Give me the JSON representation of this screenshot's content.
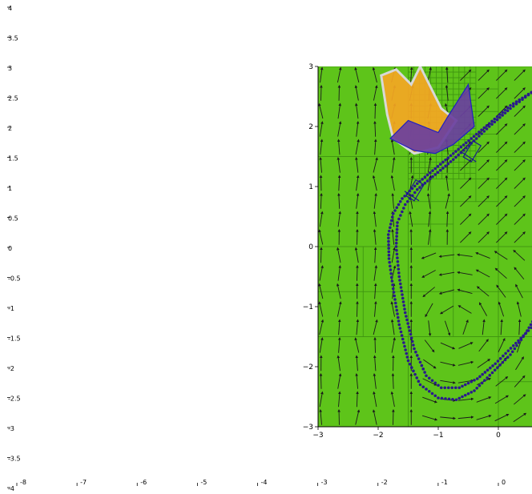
{
  "chart_data": [
    {
      "type": "scatter",
      "role": "outer-axes",
      "xlim": [
        -8,
        0
      ],
      "ylim": [
        -4,
        4
      ],
      "x_ticks": [
        "-8",
        "-7",
        "-6",
        "-5",
        "-4",
        "-3",
        "-2",
        "-1",
        "0"
      ],
      "y_ticks": [
        "4",
        "3.5",
        "3",
        "2.5",
        "2",
        "1.5",
        "1",
        "0.5",
        "0",
        "-0.5",
        "-1",
        "-1.5",
        "-2",
        "-2.5",
        "-3",
        "-3.5",
        "-4"
      ],
      "grid": false
    },
    {
      "type": "scatter",
      "role": "inner-map-axes",
      "xlim": [
        -3,
        0.6
      ],
      "ylim": [
        -3,
        3
      ],
      "x_ticks": [
        "−3",
        "−2",
        "−1",
        "0"
      ],
      "y_ticks": [
        "3",
        "2",
        "1",
        "0",
        "−1",
        "−2",
        "−3"
      ],
      "background_color": "#5ec41a",
      "cell_border_color": "#3f9412",
      "obstacles": [
        {
          "name": "orange-region",
          "color": "#f5a623",
          "outline": "#d8d8d8",
          "polygon": [
            [
              -1.95,
              2.85
            ],
            [
              -1.7,
              2.95
            ],
            [
              -1.45,
              2.7
            ],
            [
              -1.3,
              3.0
            ],
            [
              -1.1,
              2.6
            ],
            [
              -0.95,
              2.3
            ],
            [
              -0.7,
              2.1
            ],
            [
              -1.0,
              1.65
            ],
            [
              -1.4,
              1.55
            ],
            [
              -1.75,
              1.8
            ],
            [
              -1.85,
              2.2
            ]
          ]
        },
        {
          "name": "purple-region",
          "color": "#6a3fa0",
          "outline": "#2020c0",
          "polygon": [
            [
              -1.8,
              1.8
            ],
            [
              -1.5,
              2.1
            ],
            [
              -1.0,
              1.9
            ],
            [
              -0.85,
              2.15
            ],
            [
              -0.5,
              2.7
            ],
            [
              -0.4,
              2.0
            ],
            [
              -0.75,
              1.7
            ],
            [
              -1.05,
              1.55
            ],
            [
              -1.4,
              1.6
            ]
          ]
        }
      ],
      "trajectories": [
        {
          "color": "#2a1a8c",
          "points": [
            [
              0.6,
              2.6
            ],
            [
              0.2,
              2.35
            ],
            [
              -0.15,
              2.05
            ],
            [
              -0.45,
              1.8
            ],
            [
              -0.75,
              1.55
            ],
            [
              -1.05,
              1.3
            ],
            [
              -1.35,
              1.05
            ],
            [
              -1.6,
              0.8
            ],
            [
              -1.75,
              0.55
            ],
            [
              -1.83,
              0.2
            ],
            [
              -1.82,
              -0.2
            ],
            [
              -1.75,
              -0.7
            ],
            [
              -1.65,
              -1.3
            ],
            [
              -1.5,
              -1.9
            ],
            [
              -1.3,
              -2.3
            ],
            [
              -1.0,
              -2.52
            ],
            [
              -0.7,
              -2.55
            ],
            [
              -0.4,
              -2.4
            ],
            [
              -0.1,
              -2.1
            ],
            [
              0.2,
              -1.8
            ],
            [
              0.45,
              -1.45
            ],
            [
              0.6,
              -1.2
            ]
          ]
        },
        {
          "color": "#2a1a8c",
          "points": [
            [
              0.6,
              2.6
            ],
            [
              0.2,
              2.3
            ],
            [
              -0.15,
              2.0
            ],
            [
              -0.45,
              1.72
            ],
            [
              -0.75,
              1.45
            ],
            [
              -1.05,
              1.2
            ],
            [
              -1.35,
              0.95
            ],
            [
              -1.55,
              0.7
            ],
            [
              -1.68,
              0.4
            ],
            [
              -1.7,
              0.0
            ],
            [
              -1.65,
              -0.5
            ],
            [
              -1.55,
              -1.1
            ],
            [
              -1.4,
              -1.7
            ],
            [
              -1.2,
              -2.15
            ],
            [
              -0.95,
              -2.35
            ],
            [
              -0.65,
              -2.35
            ],
            [
              -0.35,
              -2.2
            ],
            [
              -0.05,
              -1.95
            ],
            [
              0.25,
              -1.65
            ],
            [
              0.5,
              -1.4
            ],
            [
              0.6,
              -1.3
            ]
          ]
        }
      ],
      "vehicle_markers": [
        {
          "x": -1.4,
          "y": 0.95
        },
        {
          "x": -0.45,
          "y": 1.6
        }
      ]
    }
  ]
}
